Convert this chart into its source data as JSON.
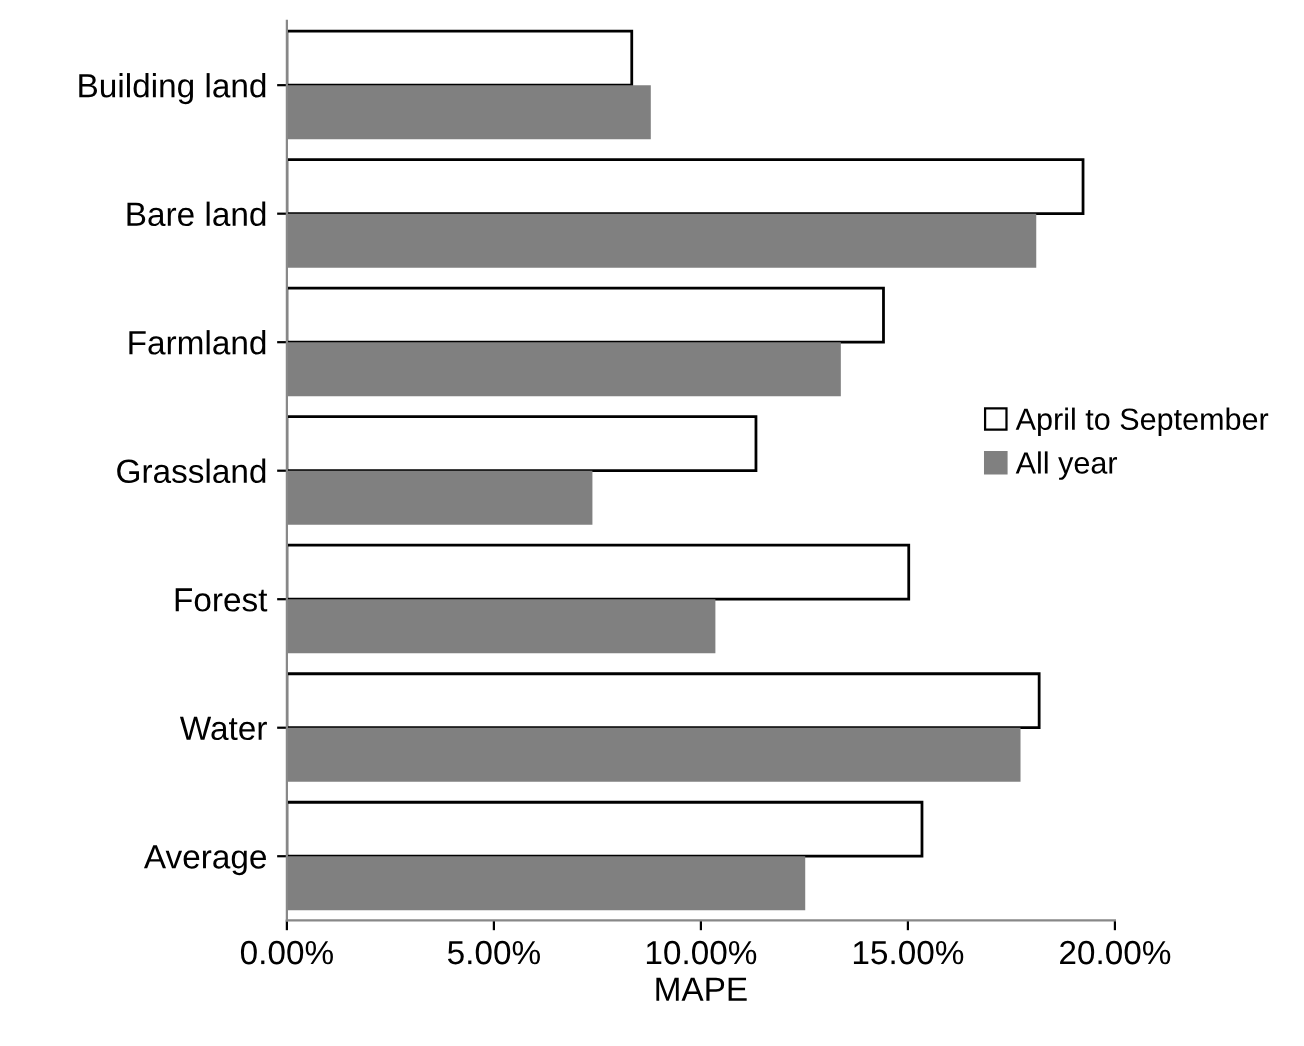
{
  "chart_data": {
    "type": "bar",
    "orientation": "horizontal",
    "xlabel": "MAPE",
    "categories": [
      "Building land",
      "Bare land",
      "Farmland",
      "Grassland",
      "Forest",
      "Water",
      "Average"
    ],
    "series": [
      {
        "name": "April to September",
        "color": "#ffffff",
        "values": [
          8.33,
          19.23,
          14.41,
          11.33,
          15.02,
          18.17,
          15.34
        ]
      },
      {
        "name": "All year",
        "color": "#808080",
        "values": [
          8.79,
          18.1,
          13.38,
          7.38,
          10.35,
          17.72,
          12.52
        ]
      }
    ],
    "xlim": [
      0,
      20
    ],
    "xticks": [
      {
        "value": 0,
        "label": "0.00%"
      },
      {
        "value": 5,
        "label": "5.00%"
      },
      {
        "value": 10,
        "label": "10.00%"
      },
      {
        "value": 15,
        "label": "15.00%"
      },
      {
        "value": 20,
        "label": "20.00%"
      }
    ],
    "legend": "right",
    "grid": false
  }
}
